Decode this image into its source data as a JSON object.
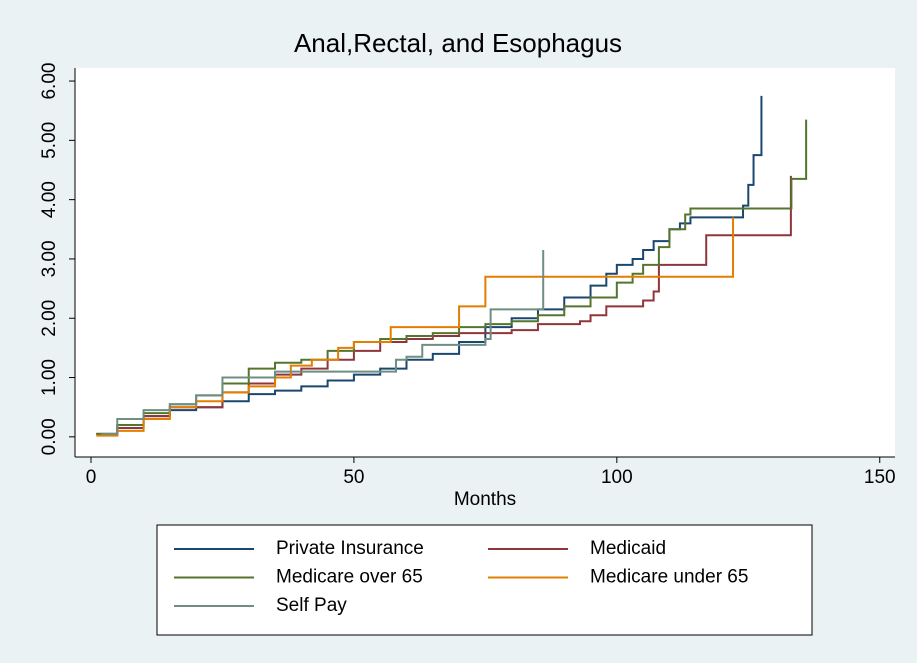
{
  "chart_data": {
    "type": "line",
    "step": true,
    "title": "Anal,Rectal, and Esophagus",
    "x_label": "Months",
    "xlim": [
      -3.04,
      152.9
    ],
    "xticks": [
      0,
      50,
      100,
      150
    ],
    "ylim": [
      -0.34,
      6.22
    ],
    "yticks": [
      {
        "value": 0,
        "label": "0.00"
      },
      {
        "value": 1,
        "label": "1.00"
      },
      {
        "value": 2,
        "label": "2.00"
      },
      {
        "value": 3,
        "label": "3.00"
      },
      {
        "value": 4,
        "label": "4.00"
      },
      {
        "value": 5,
        "label": "5.00"
      },
      {
        "value": 6,
        "label": "6.00"
      }
    ],
    "grid": false,
    "legend": "bottom",
    "series": [
      {
        "name": "Private Insurance",
        "color": "#1a476f",
        "x": [
          1,
          5,
          10,
          15,
          20,
          25,
          30,
          35,
          40,
          45,
          50,
          55,
          60,
          65,
          70,
          75,
          80,
          85,
          90,
          95,
          98,
          100,
          103,
          105,
          107,
          110,
          112,
          114,
          123,
          124,
          125,
          126,
          127.5
        ],
        "values": [
          0.05,
          0.2,
          0.35,
          0.45,
          0.5,
          0.6,
          0.72,
          0.78,
          0.85,
          0.95,
          1.05,
          1.15,
          1.3,
          1.4,
          1.6,
          1.85,
          2.0,
          2.15,
          2.35,
          2.55,
          2.75,
          2.9,
          3.0,
          3.15,
          3.3,
          3.5,
          3.6,
          3.7,
          3.7,
          3.9,
          4.25,
          4.75,
          5.75
        ]
      },
      {
        "name": "Medicaid",
        "color": "#90353b",
        "x": [
          2,
          5,
          10,
          15,
          25,
          30,
          35,
          40,
          45,
          50,
          55,
          60,
          65,
          70,
          80,
          85,
          93,
          95,
          98,
          105,
          107,
          108,
          116,
          117,
          133,
          133.1
        ],
        "values": [
          0.03,
          0.15,
          0.35,
          0.5,
          0.75,
          0.9,
          1.05,
          1.15,
          1.3,
          1.45,
          1.6,
          1.65,
          1.7,
          1.75,
          1.8,
          1.9,
          1.95,
          2.05,
          2.2,
          2.3,
          2.45,
          2.9,
          2.9,
          3.4,
          3.4,
          4.4
        ]
      },
      {
        "name": "Medicare over 65",
        "color": "#55752f",
        "x": [
          1,
          5,
          10,
          15,
          20,
          25,
          30,
          35,
          40,
          45,
          50,
          55,
          60,
          65,
          70,
          75,
          80,
          85,
          90,
          95,
          100,
          103,
          105,
          108,
          110,
          113,
          114,
          133,
          133.2,
          135,
          136
        ],
        "values": [
          0.05,
          0.2,
          0.4,
          0.55,
          0.7,
          0.9,
          1.15,
          1.25,
          1.3,
          1.45,
          1.6,
          1.65,
          1.7,
          1.75,
          1.85,
          1.9,
          1.95,
          2.05,
          2.2,
          2.35,
          2.6,
          2.75,
          2.9,
          3.2,
          3.5,
          3.75,
          3.85,
          3.85,
          4.35,
          4.35,
          5.35
        ]
      },
      {
        "name": "Medicare under 65",
        "color": "#e37e00",
        "x": [
          1,
          5,
          10,
          15,
          20,
          25,
          30,
          35,
          38,
          42,
          47,
          50,
          57,
          70,
          75,
          122,
          122.1
        ],
        "values": [
          0.02,
          0.1,
          0.3,
          0.5,
          0.6,
          0.75,
          0.85,
          1.0,
          1.2,
          1.3,
          1.5,
          1.6,
          1.85,
          2.2,
          2.7,
          2.7,
          3.7
        ]
      },
      {
        "name": "Self Pay",
        "color": "#6e8e84",
        "x": [
          2,
          5,
          10,
          15,
          20,
          25,
          35,
          45,
          53,
          58,
          60,
          63,
          75,
          76,
          85,
          86
        ],
        "values": [
          0.05,
          0.3,
          0.45,
          0.55,
          0.7,
          1.0,
          1.1,
          1.1,
          1.1,
          1.3,
          1.35,
          1.55,
          1.65,
          2.15,
          2.15,
          3.15
        ]
      }
    ]
  }
}
